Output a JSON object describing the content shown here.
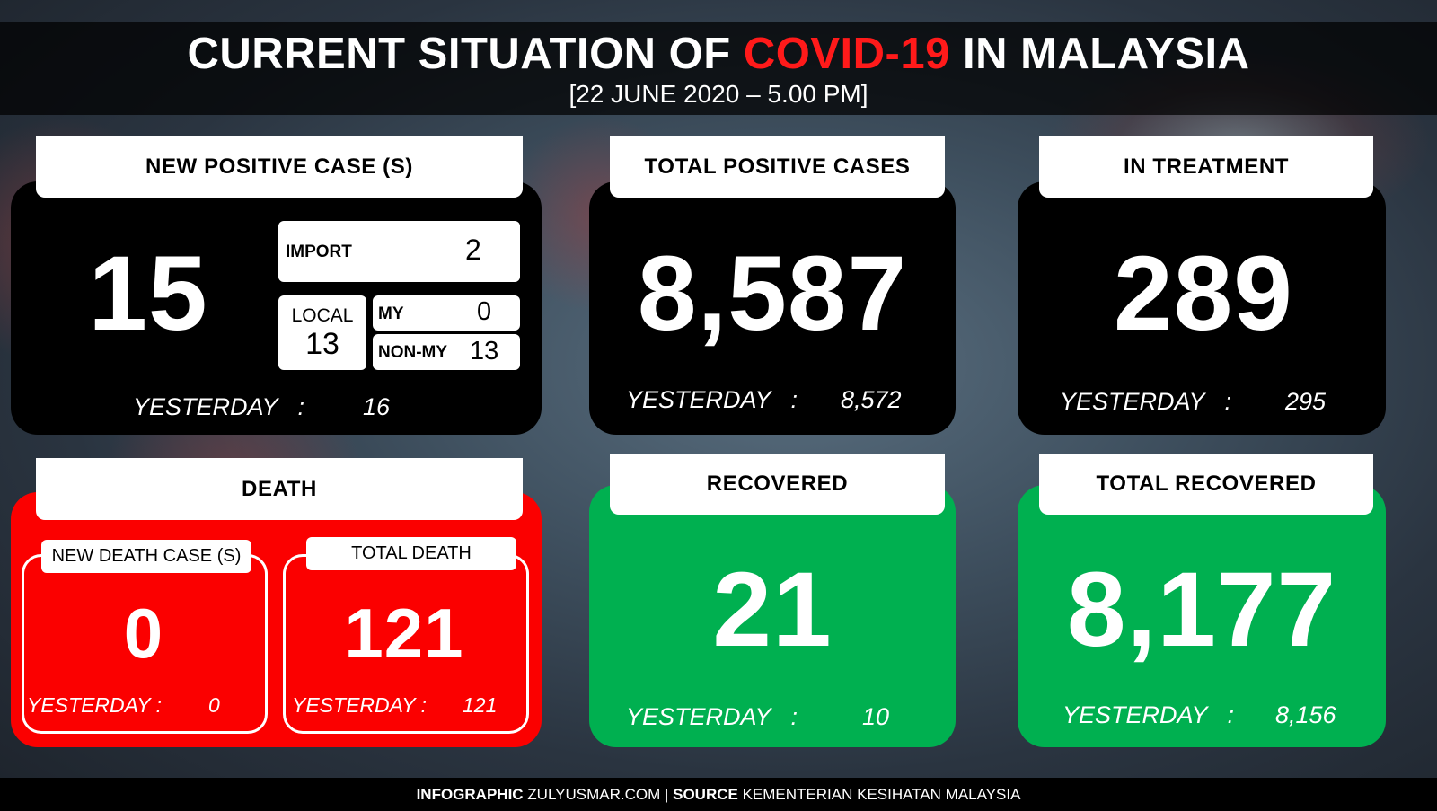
{
  "header": {
    "title_pre": "CURRENT SITUATION OF ",
    "title_highlight": "COVID-19",
    "title_post": " IN MALAYSIA",
    "date": "[22 JUNE 2020 – 5.00 PM]",
    "highlight_color": "#ff1a1a"
  },
  "new_cases": {
    "title": "NEW POSITIVE CASE (S)",
    "value": "15",
    "import_label": "IMPORT",
    "import_value": "2",
    "local_label": "LOCAL",
    "local_value": "13",
    "my_label": "MY",
    "my_value": "0",
    "nonmy_label": "NON-MY",
    "nonmy_value": "13",
    "yesterday_label": "YESTERDAY   :",
    "yesterday_value": "16"
  },
  "total_positive": {
    "title": "TOTAL POSITIVE CASES",
    "value": "8,587",
    "yesterday_label": "YESTERDAY   :",
    "yesterday_value": "8,572"
  },
  "in_treatment": {
    "title": "IN TREATMENT",
    "value": "289",
    "yesterday_label": "YESTERDAY   :",
    "yesterday_value": "295"
  },
  "death": {
    "title": "DEATH",
    "new_label": "NEW DEATH CASE (S)",
    "new_value": "0",
    "new_yesterday_label": "YESTERDAY :",
    "new_yesterday_value": "0",
    "total_label": "TOTAL DEATH",
    "total_value": "121",
    "total_yesterday_label": "YESTERDAY :",
    "total_yesterday_value": "121"
  },
  "recovered": {
    "title": "RECOVERED",
    "value": "21",
    "yesterday_label": "YESTERDAY   :",
    "yesterday_value": "10"
  },
  "total_recovered": {
    "title": "TOTAL RECOVERED",
    "value": "8,177",
    "yesterday_label": "YESTERDAY   :",
    "yesterday_value": "8,156"
  },
  "footer": {
    "infographic_label": "INFOGRAPHIC",
    "infographic_value": " ZULYUSMAR.COM | ",
    "source_label": "SOURCE",
    "source_value": " KEMENTERIAN KESIHATAN MALAYSIA"
  },
  "colors": {
    "death_red": "#fb0000",
    "recovered_green": "#00b050"
  }
}
